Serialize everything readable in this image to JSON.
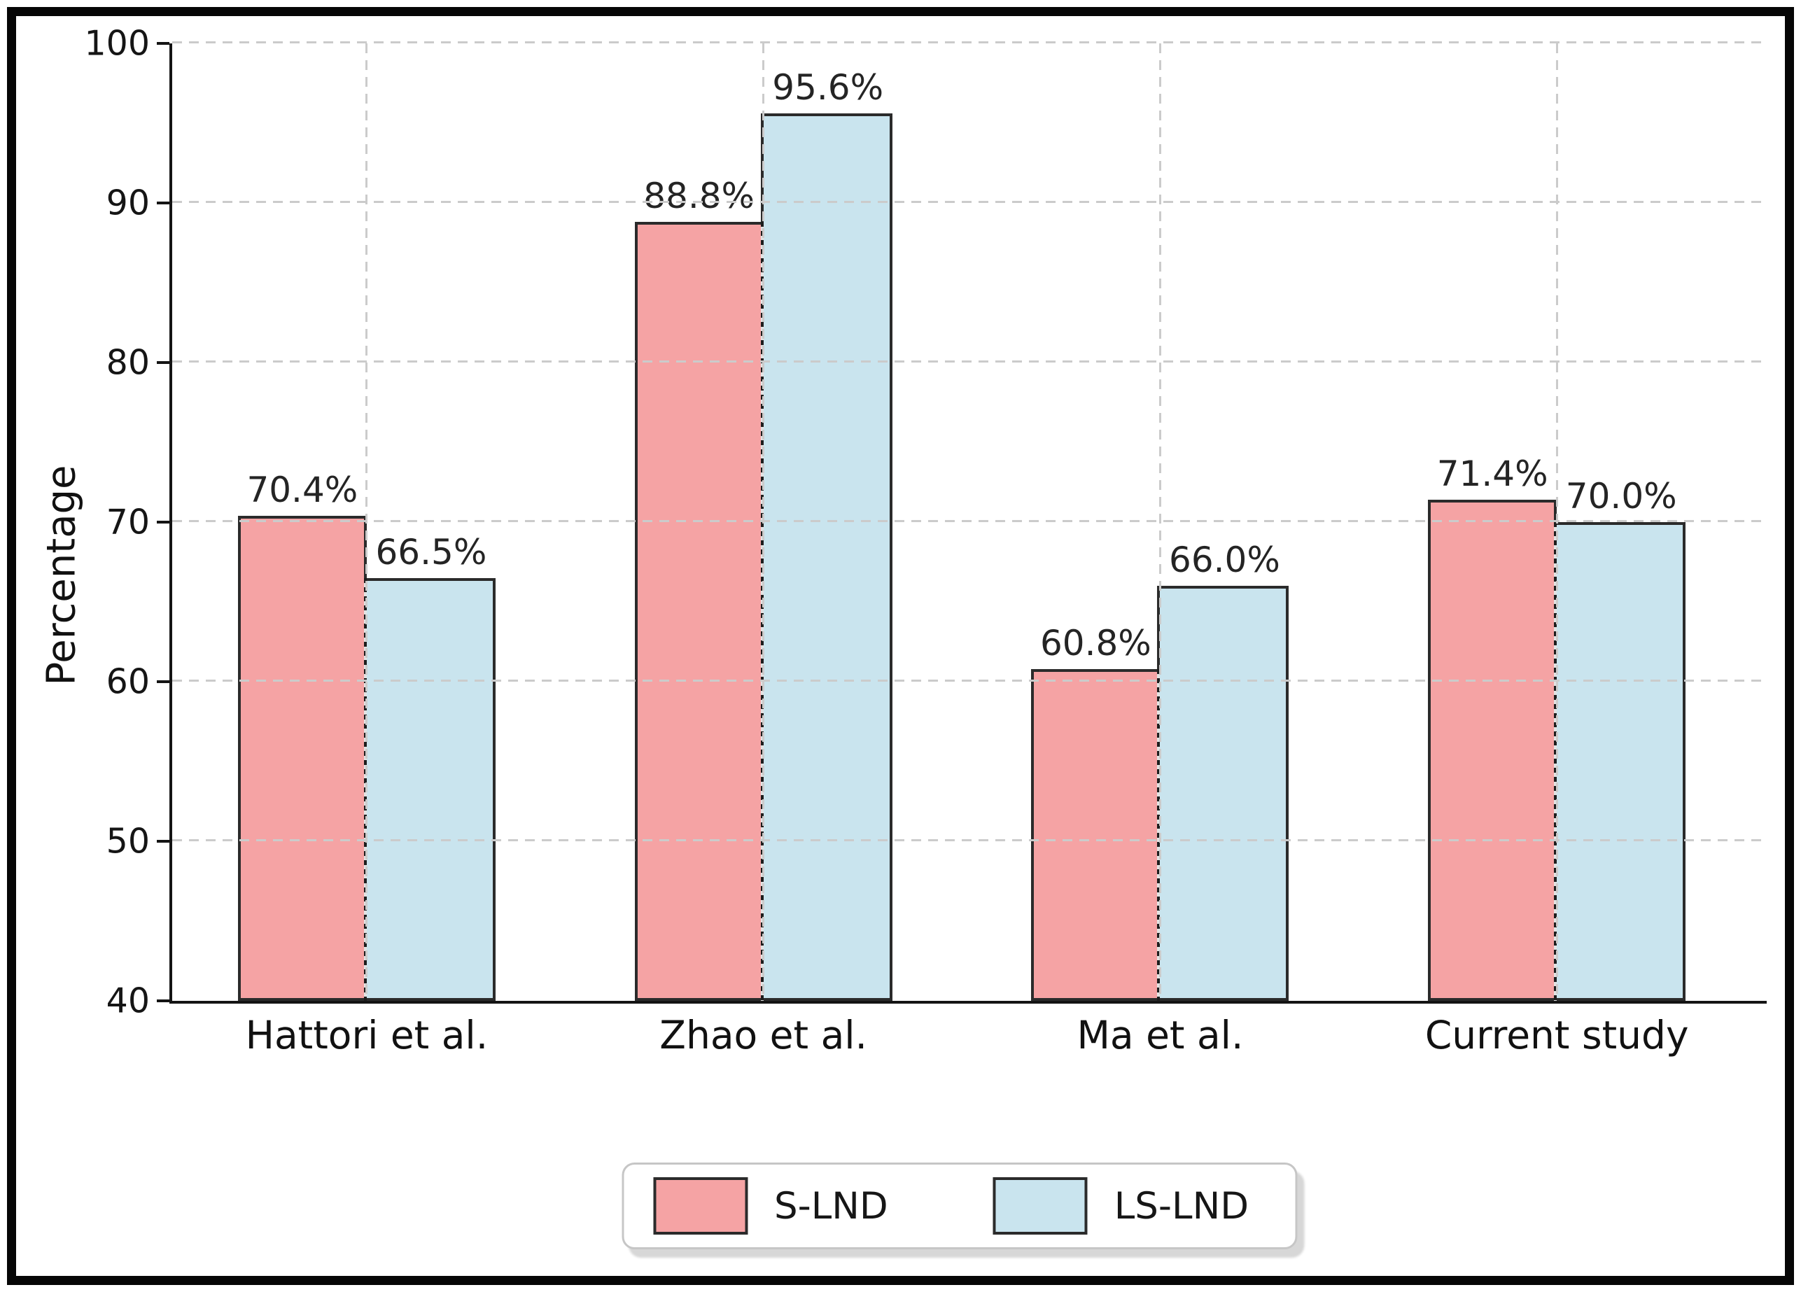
{
  "chart_data": {
    "type": "bar",
    "title": "",
    "ylabel": "Percentage",
    "xlabel": "",
    "ylim": [
      40,
      100
    ],
    "yticks": [
      100,
      90,
      80,
      70,
      60,
      50,
      40
    ],
    "categories": [
      "Hattori et al.",
      "Zhao et al.",
      "Ma et al.",
      "Current study"
    ],
    "series": [
      {
        "name": "S-LND",
        "color": "#f5a3a4",
        "edge_color": "#2b2b2b",
        "values": [
          70.4,
          88.8,
          60.8,
          71.4
        ],
        "labels": [
          "70.4%",
          "88.8%",
          "60.8%",
          "71.4%"
        ]
      },
      {
        "name": "LS-LND",
        "color": "#c9e4ee",
        "edge_color": "#2b2b2b",
        "values": [
          66.5,
          95.6,
          66.0,
          70.0
        ],
        "labels": [
          "66.5%",
          "95.6%",
          "66.0%",
          "70.0%"
        ]
      }
    ],
    "grid": true,
    "grid_style": "dashed",
    "legend_position": "bottom-center"
  },
  "legend": {
    "items": [
      {
        "label": "S-LND",
        "color": "#f5a3a4"
      },
      {
        "label": "LS-LND",
        "color": "#c9e4ee"
      }
    ]
  },
  "colors": {
    "bar_edge": "#2b2b2b",
    "grid": "#cbcbcb",
    "axis": "#141414",
    "text": "#151515",
    "frame": "#060606",
    "legend_border": "#c6c6c6",
    "legend_shadow": "#d7d7d7",
    "background": "#ffffff"
  }
}
